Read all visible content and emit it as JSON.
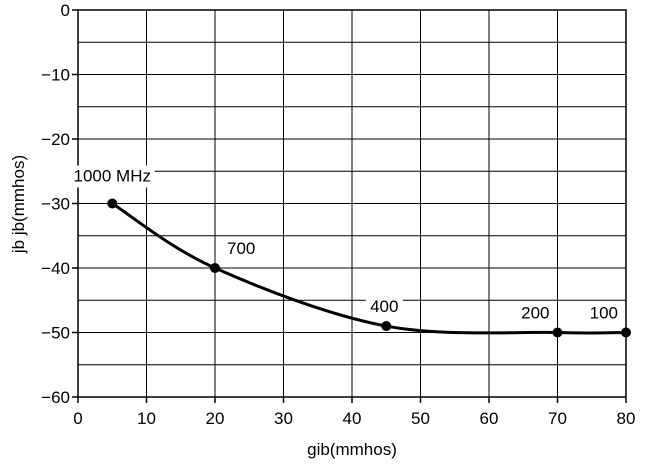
{
  "chart_data": {
    "type": "line",
    "title": "",
    "xlabel": "gib(mmhos)",
    "ylabel": "jb jb(mmhos)",
    "xlim": [
      0,
      80
    ],
    "ylim": [
      -60,
      0
    ],
    "xticks": [
      0,
      10,
      20,
      30,
      40,
      50,
      60,
      70,
      80
    ],
    "yticks": [
      0,
      -10,
      -20,
      -30,
      -40,
      -50,
      -60
    ],
    "grid": true,
    "series": [
      {
        "values": [
          {
            "x": 5,
            "y": -30,
            "label": "1000 MHz"
          },
          {
            "x": 20,
            "y": -40,
            "label": "700"
          },
          {
            "x": 45,
            "y": -49,
            "label": "400"
          },
          {
            "x": 70,
            "y": -50,
            "label": "200"
          },
          {
            "x": 80,
            "y": -50,
            "label": "100"
          }
        ]
      }
    ],
    "colors": {
      "line": "#000000",
      "grid": "#000000",
      "background": "#ffffff"
    }
  }
}
